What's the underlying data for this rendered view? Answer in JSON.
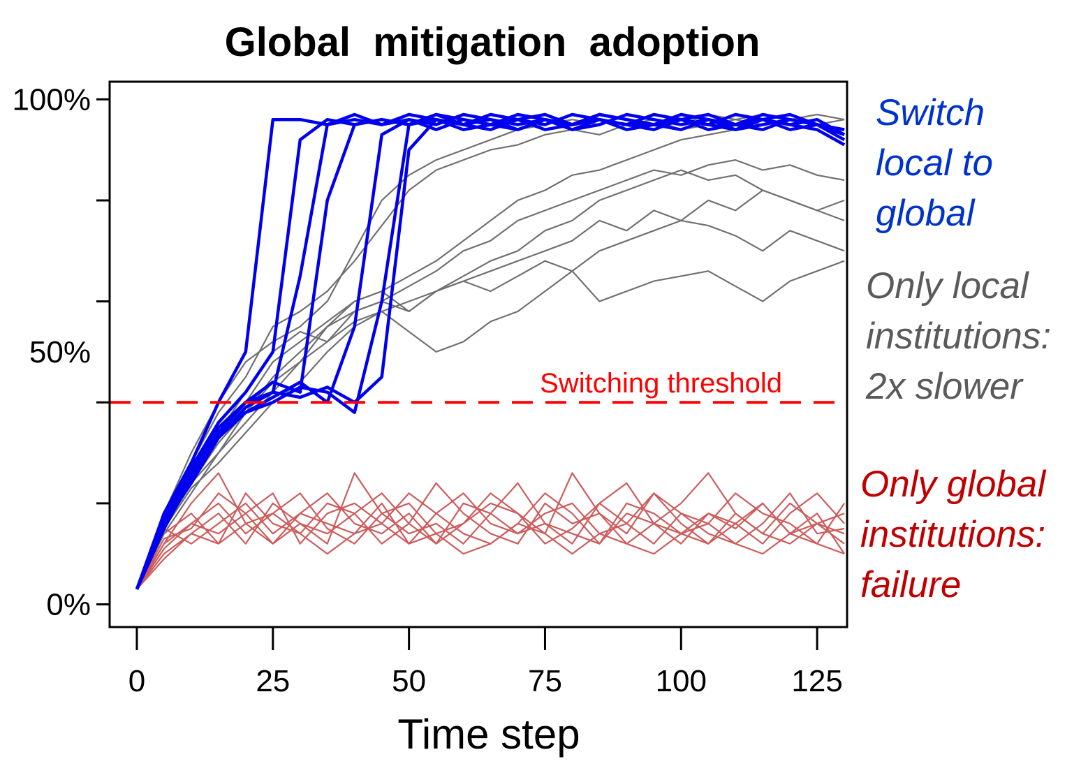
{
  "chart_data": {
    "type": "line",
    "title": "Global  mitigation  adoption",
    "xlabel": "Time step",
    "ylabel": "",
    "xlim": [
      -5,
      130.5
    ],
    "ylim": [
      -4.5,
      103.5
    ],
    "x_ticks": [
      0,
      25,
      50,
      75,
      100,
      125
    ],
    "x_tick_labels": [
      "0",
      "25",
      "50",
      "75",
      "100",
      "125"
    ],
    "y_ticks": [
      0,
      20,
      40,
      60,
      80,
      100
    ],
    "y_tick_labels": [
      {
        "value": 100,
        "label": "100%"
      },
      {
        "value": 50,
        "label": "50%"
      },
      {
        "value": 0,
        "label": "0%"
      }
    ],
    "grid": false,
    "x": [
      0,
      5,
      10,
      15,
      20,
      25,
      30,
      35,
      40,
      45,
      50,
      55,
      60,
      65,
      70,
      75,
      80,
      85,
      90,
      95,
      100,
      105,
      110,
      115,
      120,
      125,
      130
    ],
    "threshold": {
      "value": 40,
      "label": "Switching threshold",
      "color": "#ff0000"
    },
    "groups": [
      {
        "name": "Switch local to global",
        "label_lines": [
          "Switch",
          "local to",
          "global"
        ],
        "line_color": "#0000ee",
        "label_color": "#0033cc",
        "series": [
          [
            3,
            18,
            28,
            40,
            50,
            96,
            96,
            95,
            97,
            95,
            96,
            94,
            96,
            95,
            97,
            96,
            94,
            96,
            95,
            95,
            97,
            96,
            95,
            94,
            96,
            95,
            94
          ],
          [
            3,
            17,
            27,
            36,
            42,
            50,
            92,
            96,
            95,
            96,
            95,
            97,
            95,
            96,
            94,
            96,
            95,
            97,
            96,
            95,
            94,
            96,
            95,
            97,
            96,
            95,
            93
          ],
          [
            3,
            16,
            26,
            35,
            40,
            42,
            65,
            95,
            96,
            95,
            97,
            96,
            94,
            95,
            96,
            97,
            95,
            96,
            94,
            95,
            96,
            97,
            95,
            96,
            94,
            95,
            93
          ],
          [
            3,
            15,
            25,
            34,
            40,
            44,
            42,
            80,
            95,
            96,
            95,
            97,
            96,
            95,
            94,
            96,
            95,
            97,
            96,
            95,
            96,
            94,
            95,
            96,
            97,
            95,
            94
          ],
          [
            3,
            16,
            24,
            33,
            38,
            41,
            44,
            40,
            55,
            93,
            96,
            95,
            97,
            96,
            95,
            96,
            94,
            95,
            97,
            96,
            95,
            96,
            94,
            95,
            96,
            95,
            92
          ],
          [
            3,
            15,
            25,
            34,
            38,
            40,
            43,
            42,
            38,
            60,
            95,
            96,
            95,
            94,
            96,
            95,
            97,
            96,
            95,
            94,
            96,
            95,
            97,
            96,
            95,
            94,
            91
          ],
          [
            3,
            17,
            26,
            33,
            39,
            42,
            41,
            43,
            40,
            45,
            90,
            96,
            95,
            97,
            96,
            94,
            95,
            96,
            95,
            97,
            96,
            95,
            94,
            96,
            95,
            96,
            93
          ]
        ]
      },
      {
        "name": "Only local institutions: 2x slower",
        "label_lines": [
          "Only local",
          "institutions:",
          "2x slower"
        ],
        "line_color": "#707070",
        "label_color": "#5a5a5a",
        "series": [
          [
            3,
            18,
            30,
            40,
            48,
            52,
            55,
            60,
            70,
            80,
            85,
            88,
            90,
            92,
            94,
            95,
            96,
            95,
            97,
            96,
            95,
            97,
            96,
            97,
            96,
            97,
            96
          ],
          [
            3,
            17,
            28,
            38,
            45,
            55,
            58,
            62,
            68,
            75,
            82,
            86,
            88,
            90,
            91,
            93,
            94,
            93,
            95,
            96,
            94,
            95,
            96,
            95,
            96,
            95,
            94
          ],
          [
            3,
            16,
            25,
            33,
            40,
            48,
            52,
            56,
            60,
            62,
            65,
            68,
            72,
            76,
            80,
            82,
            85,
            86,
            88,
            90,
            92,
            93,
            94,
            95,
            96,
            95,
            96
          ],
          [
            3,
            15,
            24,
            30,
            38,
            45,
            50,
            55,
            58,
            60,
            63,
            66,
            70,
            72,
            76,
            78,
            80,
            82,
            84,
            86,
            85,
            87,
            88,
            86,
            87,
            85,
            84
          ],
          [
            3,
            16,
            26,
            34,
            42,
            50,
            54,
            52,
            58,
            60,
            58,
            62,
            65,
            68,
            70,
            74,
            76,
            80,
            82,
            84,
            86,
            84,
            85,
            82,
            80,
            78,
            80
          ],
          [
            3,
            14,
            22,
            30,
            36,
            42,
            48,
            52,
            56,
            58,
            54,
            50,
            52,
            56,
            58,
            62,
            66,
            70,
            72,
            74,
            76,
            75,
            73,
            70,
            74,
            72,
            70
          ],
          [
            3,
            15,
            23,
            28,
            34,
            40,
            44,
            50,
            55,
            58,
            60,
            62,
            64,
            62,
            65,
            68,
            66,
            60,
            62,
            64,
            65,
            66,
            63,
            60,
            64,
            66,
            68
          ],
          [
            3,
            16,
            24,
            32,
            38,
            44,
            48,
            55,
            60,
            62,
            58,
            62,
            64,
            66,
            68,
            70,
            72,
            76,
            74,
            78,
            76,
            80,
            78,
            82,
            80,
            78,
            76
          ]
        ]
      },
      {
        "name": "Only global institutions: failure",
        "label_lines": [
          "Only global",
          "institutions:",
          "failure"
        ],
        "line_color": "#cd5c5c",
        "label_color": "#c00000",
        "series": [
          [
            3,
            12,
            16,
            20,
            14,
            18,
            22,
            15,
            12,
            18,
            20,
            14,
            16,
            22,
            18,
            12,
            15,
            20,
            24,
            16,
            12,
            18,
            15,
            20,
            14,
            16,
            12
          ],
          [
            3,
            14,
            18,
            12,
            22,
            16,
            14,
            20,
            18,
            12,
            16,
            24,
            18,
            14,
            12,
            20,
            16,
            18,
            14,
            22,
            16,
            12,
            18,
            14,
            20,
            16,
            18
          ],
          [
            3,
            10,
            14,
            18,
            12,
            20,
            16,
            12,
            26,
            18,
            14,
            16,
            12,
            18,
            24,
            16,
            14,
            12,
            18,
            16,
            20,
            26,
            18,
            14,
            12,
            16,
            14
          ],
          [
            3,
            15,
            12,
            16,
            20,
            14,
            18,
            16,
            14,
            20,
            12,
            18,
            22,
            16,
            14,
            18,
            20,
            14,
            16,
            12,
            18,
            16,
            22,
            18,
            16,
            12,
            20
          ],
          [
            3,
            12,
            20,
            26,
            16,
            12,
            18,
            22,
            16,
            14,
            18,
            12,
            16,
            20,
            18,
            14,
            26,
            18,
            12,
            16,
            14,
            18,
            16,
            12,
            18,
            22,
            16
          ],
          [
            3,
            11,
            16,
            14,
            18,
            22,
            12,
            18,
            20,
            16,
            22,
            18,
            14,
            12,
            16,
            22,
            18,
            12,
            20,
            18,
            14,
            12,
            16,
            20,
            14,
            18,
            10
          ],
          [
            3,
            13,
            15,
            22,
            18,
            12,
            16,
            14,
            18,
            22,
            16,
            12,
            20,
            18,
            14,
            16,
            12,
            20,
            16,
            22,
            18,
            14,
            12,
            16,
            22,
            14,
            15
          ],
          [
            3,
            9,
            14,
            12,
            16,
            18,
            14,
            10,
            14,
            16,
            12,
            14,
            10,
            12,
            16,
            14,
            10,
            14,
            12,
            10,
            14,
            16,
            12,
            10,
            14,
            12,
            10
          ]
        ]
      }
    ]
  }
}
